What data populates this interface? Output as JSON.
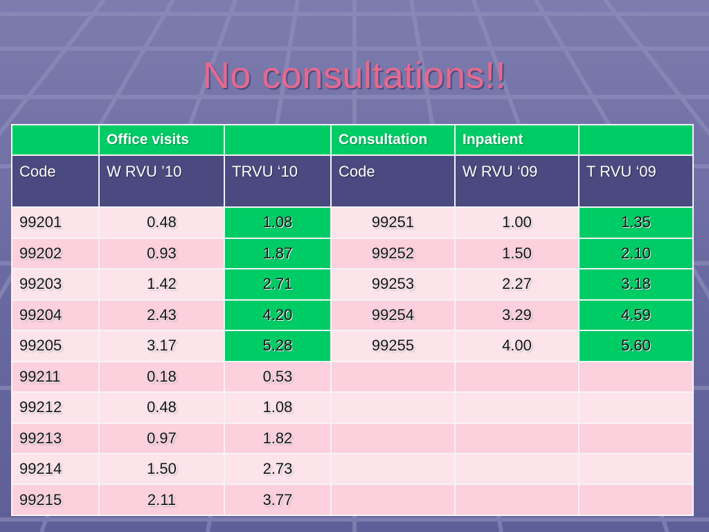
{
  "slide": {
    "title": "No consultations!!",
    "colors": {
      "title": "#e8688e",
      "header_green": "#00cc66",
      "subheader_navy": "#4a4a80",
      "row_light": "#fde3ea",
      "row_dark": "#fcd0dd",
      "background": "#6c6ca3"
    }
  },
  "table": {
    "group_headers": [
      "",
      "Office visits",
      "",
      "Consultation",
      "Inpatient",
      ""
    ],
    "sub_headers": [
      "Code",
      "W RVU ’10",
      "TRVU ‘10",
      "Code",
      "W RVU ‘09",
      "T RVU ‘09"
    ],
    "rows": [
      [
        "99201",
        "0.48",
        "1.08",
        "99251",
        "1.00",
        "1.35"
      ],
      [
        "99202",
        "0.93",
        "1.87",
        "99252",
        "1.50",
        "2.10"
      ],
      [
        "99203",
        "1.42",
        "2.71",
        "99253",
        "2.27",
        "3.18"
      ],
      [
        "99204",
        "2.43",
        "4.20",
        "99254",
        "3.29",
        "4.59"
      ],
      [
        "99205",
        "3.17",
        "5.28",
        "99255",
        "4.00",
        "5.60"
      ],
      [
        "99211",
        "0.18",
        "0.53",
        "",
        "",
        ""
      ],
      [
        "99212",
        "0.48",
        "1.08",
        "",
        "",
        ""
      ],
      [
        "99213",
        "0.97",
        "1.82",
        "",
        "",
        ""
      ],
      [
        "99214",
        "1.50",
        "2.73",
        "",
        "",
        ""
      ],
      [
        "99215",
        "2.11",
        "3.77",
        "",
        "",
        ""
      ]
    ]
  }
}
